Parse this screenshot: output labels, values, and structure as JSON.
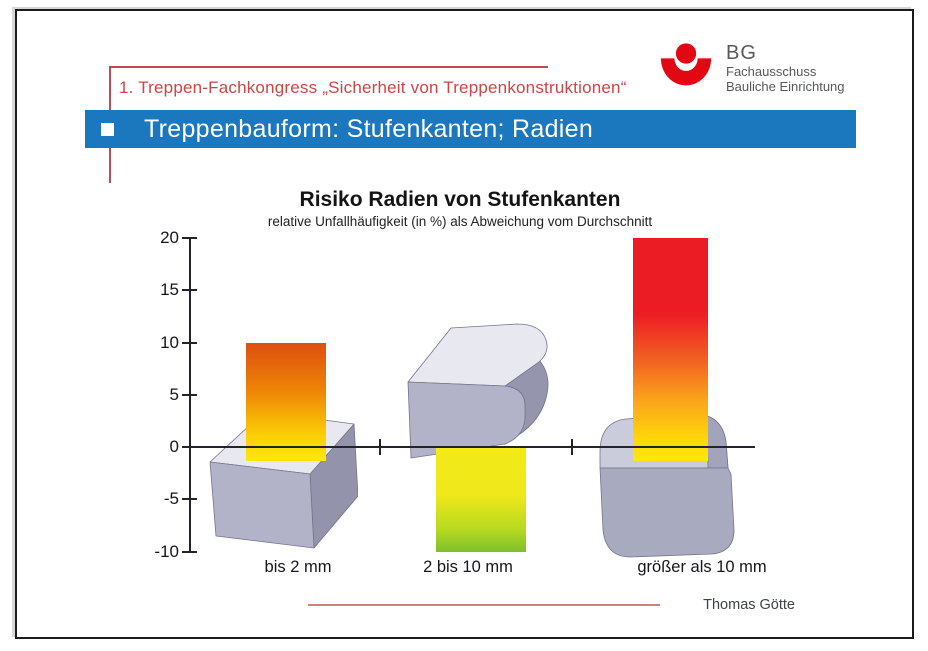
{
  "slide": {
    "congress_header": "1. Treppen-Fachkongress „Sicherheit von Treppenkonstruktionen“",
    "banner_title": "Treppenbauform: Stufenkanten; Radien",
    "author": "Thomas Götte"
  },
  "logo": {
    "name": "BG",
    "subtitle_line1": "Fachausschuss",
    "subtitle_line2": "Bauliche Einrichtung"
  },
  "chart_data": {
    "type": "bar",
    "title": "Risiko Radien von Stufenkanten",
    "subtitle": "relative Unfallhäufigkeit (in %) als Abweichung vom Durchschnitt",
    "categories": [
      "bis 2 mm",
      "2 bis 10 mm",
      "größer als 10 mm"
    ],
    "values": [
      10,
      -10,
      20
    ],
    "yticks": [
      20,
      15,
      10,
      5,
      0,
      -5,
      -10
    ],
    "ylim": [
      -10,
      20
    ],
    "grid": false,
    "legend": false,
    "annotations": "each bar rises from a grey 3D step-edge illustration: sharp edge (bis 2 mm), slightly rounded edge (2 bis 10 mm), strongly rounded edge (größer als 10 mm)"
  },
  "colors": {
    "banner_blue": "#1b77be",
    "header_red": "#cf4545",
    "corner_rule_red": "#c14b55",
    "logo_red": "#e30613",
    "bar_positive_small": "yellow to orange-red gradient",
    "bar_negative": "yellow to green gradient",
    "bar_positive_large": "yellow to red gradient",
    "block_grey_top": "#e8e8f0",
    "block_grey_front": "#b2b3c8",
    "block_grey_side": "#9394ac"
  }
}
